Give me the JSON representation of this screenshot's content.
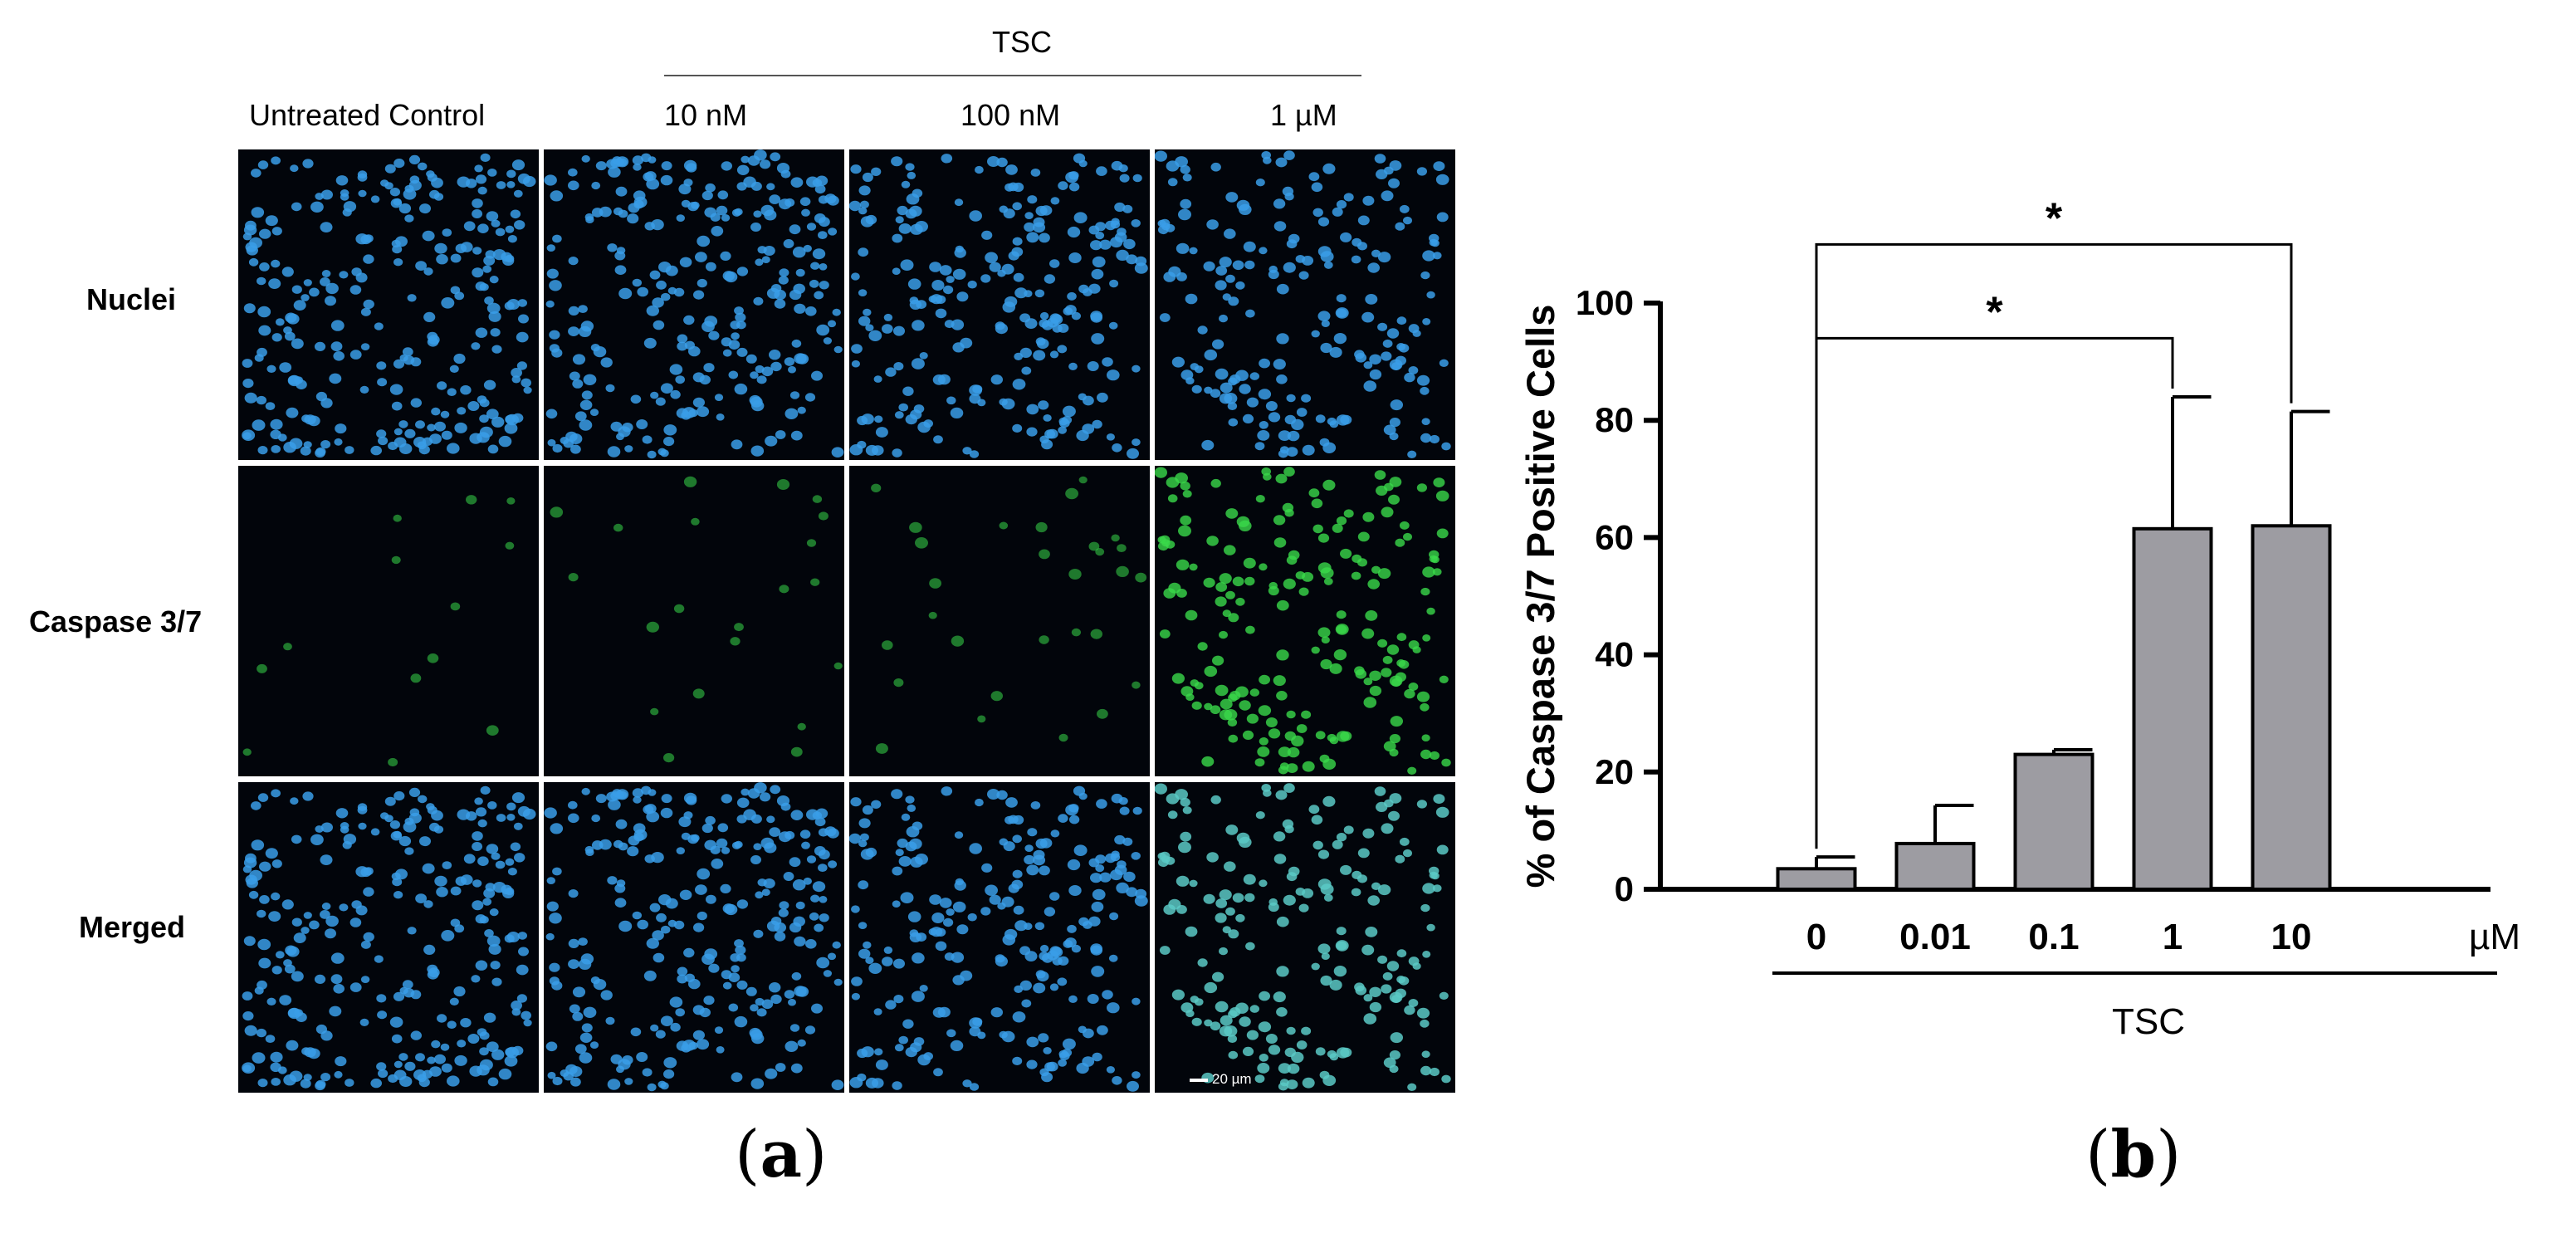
{
  "panel_a": {
    "tag_open": "(",
    "tag_letter": "a",
    "tag_close": ")",
    "group_label": "TSC",
    "columns": [
      "Untreated Control",
      "10 nM",
      "100 nM",
      "1 µM"
    ],
    "rows": [
      "Nuclei",
      "Caspase 3/7",
      "Merged"
    ],
    "scale_bar": "20 µm",
    "colors": {
      "nuclei": "#3a9ee8",
      "caspase": "#39d84a",
      "background": "#02050b"
    },
    "green_density": [
      0.06,
      0.08,
      0.12,
      1.0
    ],
    "blue_density": [
      1.0,
      1.0,
      0.9,
      0.75
    ]
  },
  "panel_b": {
    "tag_open": "(",
    "tag_letter": "b",
    "tag_close": ")"
  },
  "chart_data": {
    "type": "bar",
    "categories": [
      "0",
      "0.01",
      "0.1",
      "1",
      "10"
    ],
    "values": [
      3.5,
      7.8,
      23,
      61.5,
      62
    ],
    "error_bars": [
      2,
      6.5,
      0.8,
      22.5,
      19.5
    ],
    "ylabel": "% of Caspase 3/7 Positive Cells",
    "xlabel": "TSC",
    "x_unit": "µM",
    "ylim": [
      0,
      100
    ],
    "yticks": [
      0,
      20,
      40,
      60,
      80,
      100
    ],
    "bar_color": "#9d9ca2",
    "grid": false,
    "significance": [
      {
        "from": "0",
        "to": "1",
        "label": "*"
      },
      {
        "from": "0",
        "to": "10",
        "label": "*"
      }
    ]
  }
}
